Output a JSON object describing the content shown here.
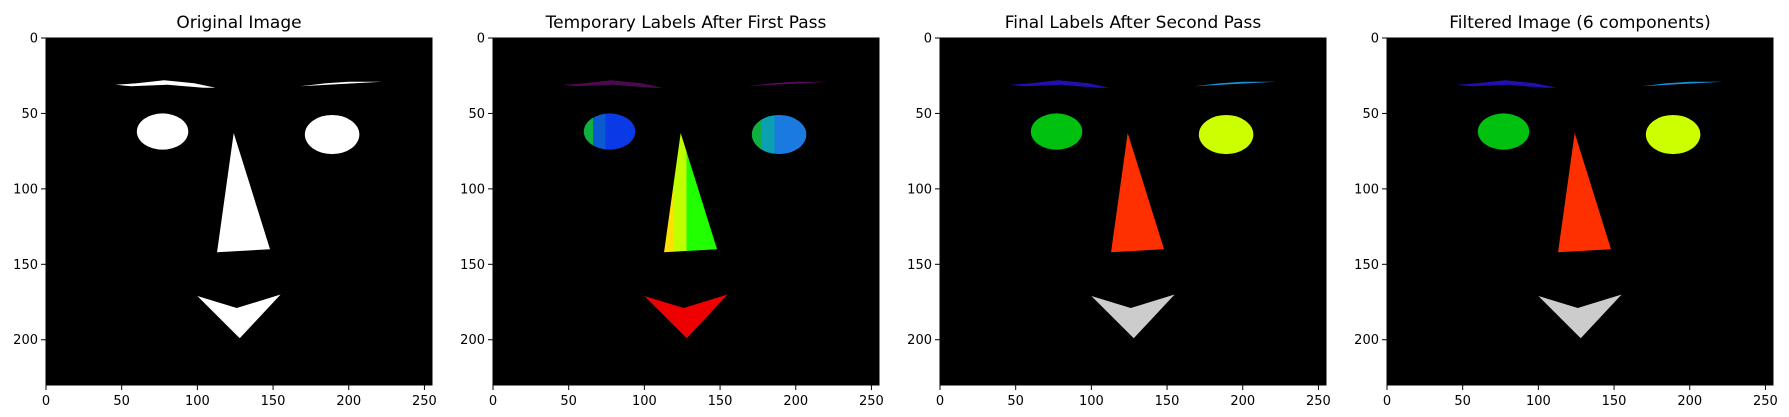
{
  "chart_data": [
    {
      "type": "image",
      "title": "Original Image",
      "xlim": [
        0,
        255
      ],
      "ylim": [
        230,
        0
      ],
      "x_ticks": [
        0,
        50,
        100,
        150,
        200,
        250
      ],
      "y_ticks": [
        0,
        50,
        100,
        150,
        200
      ],
      "background": "#000000",
      "regions": [
        {
          "name": "left-eyebrow",
          "shape": "polygon",
          "points": [
            [
              46,
              31
            ],
            [
              60,
              30
            ],
            [
              78,
              28
            ],
            [
              98,
              30
            ],
            [
              112,
              33
            ],
            [
              104,
              33
            ],
            [
              80,
              31
            ],
            [
              56,
              32
            ]
          ],
          "fill": "#ffffff"
        },
        {
          "name": "right-eyebrow",
          "shape": "polygon",
          "points": [
            [
              168,
              32
            ],
            [
              185,
              30
            ],
            [
              200,
              29
            ],
            [
              222,
              29
            ],
            [
              204,
              30
            ],
            [
              186,
              31
            ]
          ],
          "fill": "#ffffff"
        },
        {
          "name": "left-eye",
          "shape": "ellipse",
          "center": [
            77,
            62
          ],
          "radius": [
            17,
            12
          ],
          "fill": "#ffffff"
        },
        {
          "name": "right-eye",
          "shape": "ellipse",
          "center": [
            189,
            64
          ],
          "radius": [
            18,
            13
          ],
          "fill": "#ffffff"
        },
        {
          "name": "nose",
          "shape": "polygon",
          "points": [
            [
              124,
              63
            ],
            [
              148,
              140
            ],
            [
              113,
              142
            ]
          ],
          "fill": "#ffffff"
        },
        {
          "name": "mouth",
          "shape": "polygon",
          "points": [
            [
              100,
              171
            ],
            [
              126,
              179
            ],
            [
              155,
              170
            ],
            [
              128,
              199
            ]
          ],
          "fill": "#ffffff"
        }
      ]
    },
    {
      "type": "image",
      "title": "Temporary Labels After First Pass",
      "xlim": [
        0,
        255
      ],
      "ylim": [
        230,
        0
      ],
      "x_ticks": [
        0,
        50,
        100,
        150,
        200,
        250
      ],
      "y_ticks": [
        0,
        50,
        100,
        150,
        200
      ],
      "background": "#000000",
      "regions": [
        {
          "name": "left-eyebrow",
          "shape": "polygon",
          "points": [
            [
              46,
              31
            ],
            [
              60,
              30
            ],
            [
              78,
              28
            ],
            [
              98,
              30
            ],
            [
              112,
              33
            ],
            [
              104,
              33
            ],
            [
              80,
              31
            ],
            [
              56,
              32
            ]
          ],
          "fill": "#4a0a50"
        },
        {
          "name": "right-eyebrow",
          "shape": "polygon",
          "points": [
            [
              168,
              32
            ],
            [
              185,
              30
            ],
            [
              200,
              29
            ],
            [
              222,
              29
            ],
            [
              204,
              30
            ],
            [
              186,
              31
            ]
          ],
          "fill": "#5a0a60"
        },
        {
          "name": "left-eye",
          "shape": "ellipse",
          "center": [
            77,
            62
          ],
          "radius": [
            17,
            12
          ],
          "fill": "#0a3ae6",
          "stripes": [
            "#10b040",
            "#0a5ad0",
            "#0a3ae6"
          ]
        },
        {
          "name": "right-eye",
          "shape": "ellipse",
          "center": [
            189,
            64
          ],
          "radius": [
            18,
            13
          ],
          "fill": "#1a7ae0",
          "stripes": [
            "#10b040",
            "#0aa0b0",
            "#1a7ae0"
          ]
        },
        {
          "name": "nose",
          "shape": "polygon",
          "points": [
            [
              124,
              63
            ],
            [
              148,
              140
            ],
            [
              113,
              142
            ]
          ],
          "fill": "#22ff00",
          "stripes": [
            "#ffe000",
            "#c0ff00",
            "#22ff00"
          ]
        },
        {
          "name": "mouth",
          "shape": "polygon",
          "points": [
            [
              100,
              171
            ],
            [
              126,
              179
            ],
            [
              155,
              170
            ],
            [
              128,
              199
            ]
          ],
          "fill": "#ee0000"
        }
      ]
    },
    {
      "type": "image",
      "title": "Final Labels After Second Pass",
      "xlim": [
        0,
        255
      ],
      "ylim": [
        230,
        0
      ],
      "x_ticks": [
        0,
        50,
        100,
        150,
        200,
        250
      ],
      "y_ticks": [
        0,
        50,
        100,
        150,
        200
      ],
      "background": "#000000",
      "regions": [
        {
          "name": "left-eyebrow",
          "shape": "polygon",
          "points": [
            [
              46,
              31
            ],
            [
              60,
              30
            ],
            [
              78,
              28
            ],
            [
              98,
              30
            ],
            [
              112,
              33
            ],
            [
              104,
              33
            ],
            [
              80,
              31
            ],
            [
              56,
              32
            ]
          ],
          "fill": "#2010b0"
        },
        {
          "name": "right-eyebrow",
          "shape": "polygon",
          "points": [
            [
              168,
              32
            ],
            [
              185,
              30
            ],
            [
              200,
              29
            ],
            [
              222,
              29
            ],
            [
              204,
              30
            ],
            [
              186,
              31
            ]
          ],
          "fill": "#1890d8"
        },
        {
          "name": "left-eye",
          "shape": "ellipse",
          "center": [
            77,
            62
          ],
          "radius": [
            17,
            12
          ],
          "fill": "#00c010"
        },
        {
          "name": "right-eye",
          "shape": "ellipse",
          "center": [
            189,
            64
          ],
          "radius": [
            18,
            13
          ],
          "fill": "#ccff00"
        },
        {
          "name": "nose",
          "shape": "polygon",
          "points": [
            [
              124,
              63
            ],
            [
              148,
              140
            ],
            [
              113,
              142
            ]
          ],
          "fill": "#ff3000"
        },
        {
          "name": "mouth",
          "shape": "polygon",
          "points": [
            [
              100,
              171
            ],
            [
              126,
              179
            ],
            [
              155,
              170
            ],
            [
              128,
              199
            ]
          ],
          "fill": "#cccccc"
        }
      ]
    },
    {
      "type": "image",
      "title": "Filtered Image (6 components)",
      "xlim": [
        0,
        255
      ],
      "ylim": [
        230,
        0
      ],
      "x_ticks": [
        0,
        50,
        100,
        150,
        200,
        250
      ],
      "y_ticks": [
        0,
        50,
        100,
        150,
        200
      ],
      "background": "#000000",
      "regions": [
        {
          "name": "left-eyebrow",
          "shape": "polygon",
          "points": [
            [
              46,
              31
            ],
            [
              60,
              30
            ],
            [
              78,
              28
            ],
            [
              98,
              30
            ],
            [
              112,
              33
            ],
            [
              104,
              33
            ],
            [
              80,
              31
            ],
            [
              56,
              32
            ]
          ],
          "fill": "#2010b0"
        },
        {
          "name": "right-eyebrow",
          "shape": "polygon",
          "points": [
            [
              168,
              32
            ],
            [
              185,
              30
            ],
            [
              200,
              29
            ],
            [
              222,
              29
            ],
            [
              204,
              30
            ],
            [
              186,
              31
            ]
          ],
          "fill": "#1890d8"
        },
        {
          "name": "left-eye",
          "shape": "ellipse",
          "center": [
            77,
            62
          ],
          "radius": [
            17,
            12
          ],
          "fill": "#00c010"
        },
        {
          "name": "right-eye",
          "shape": "ellipse",
          "center": [
            189,
            64
          ],
          "radius": [
            18,
            13
          ],
          "fill": "#ccff00"
        },
        {
          "name": "nose",
          "shape": "polygon",
          "points": [
            [
              124,
              63
            ],
            [
              148,
              140
            ],
            [
              113,
              142
            ]
          ],
          "fill": "#ff3000"
        },
        {
          "name": "mouth",
          "shape": "polygon",
          "points": [
            [
              100,
              171
            ],
            [
              126,
              179
            ],
            [
              155,
              170
            ],
            [
              128,
              199
            ]
          ],
          "fill": "#cccccc"
        }
      ]
    }
  ]
}
